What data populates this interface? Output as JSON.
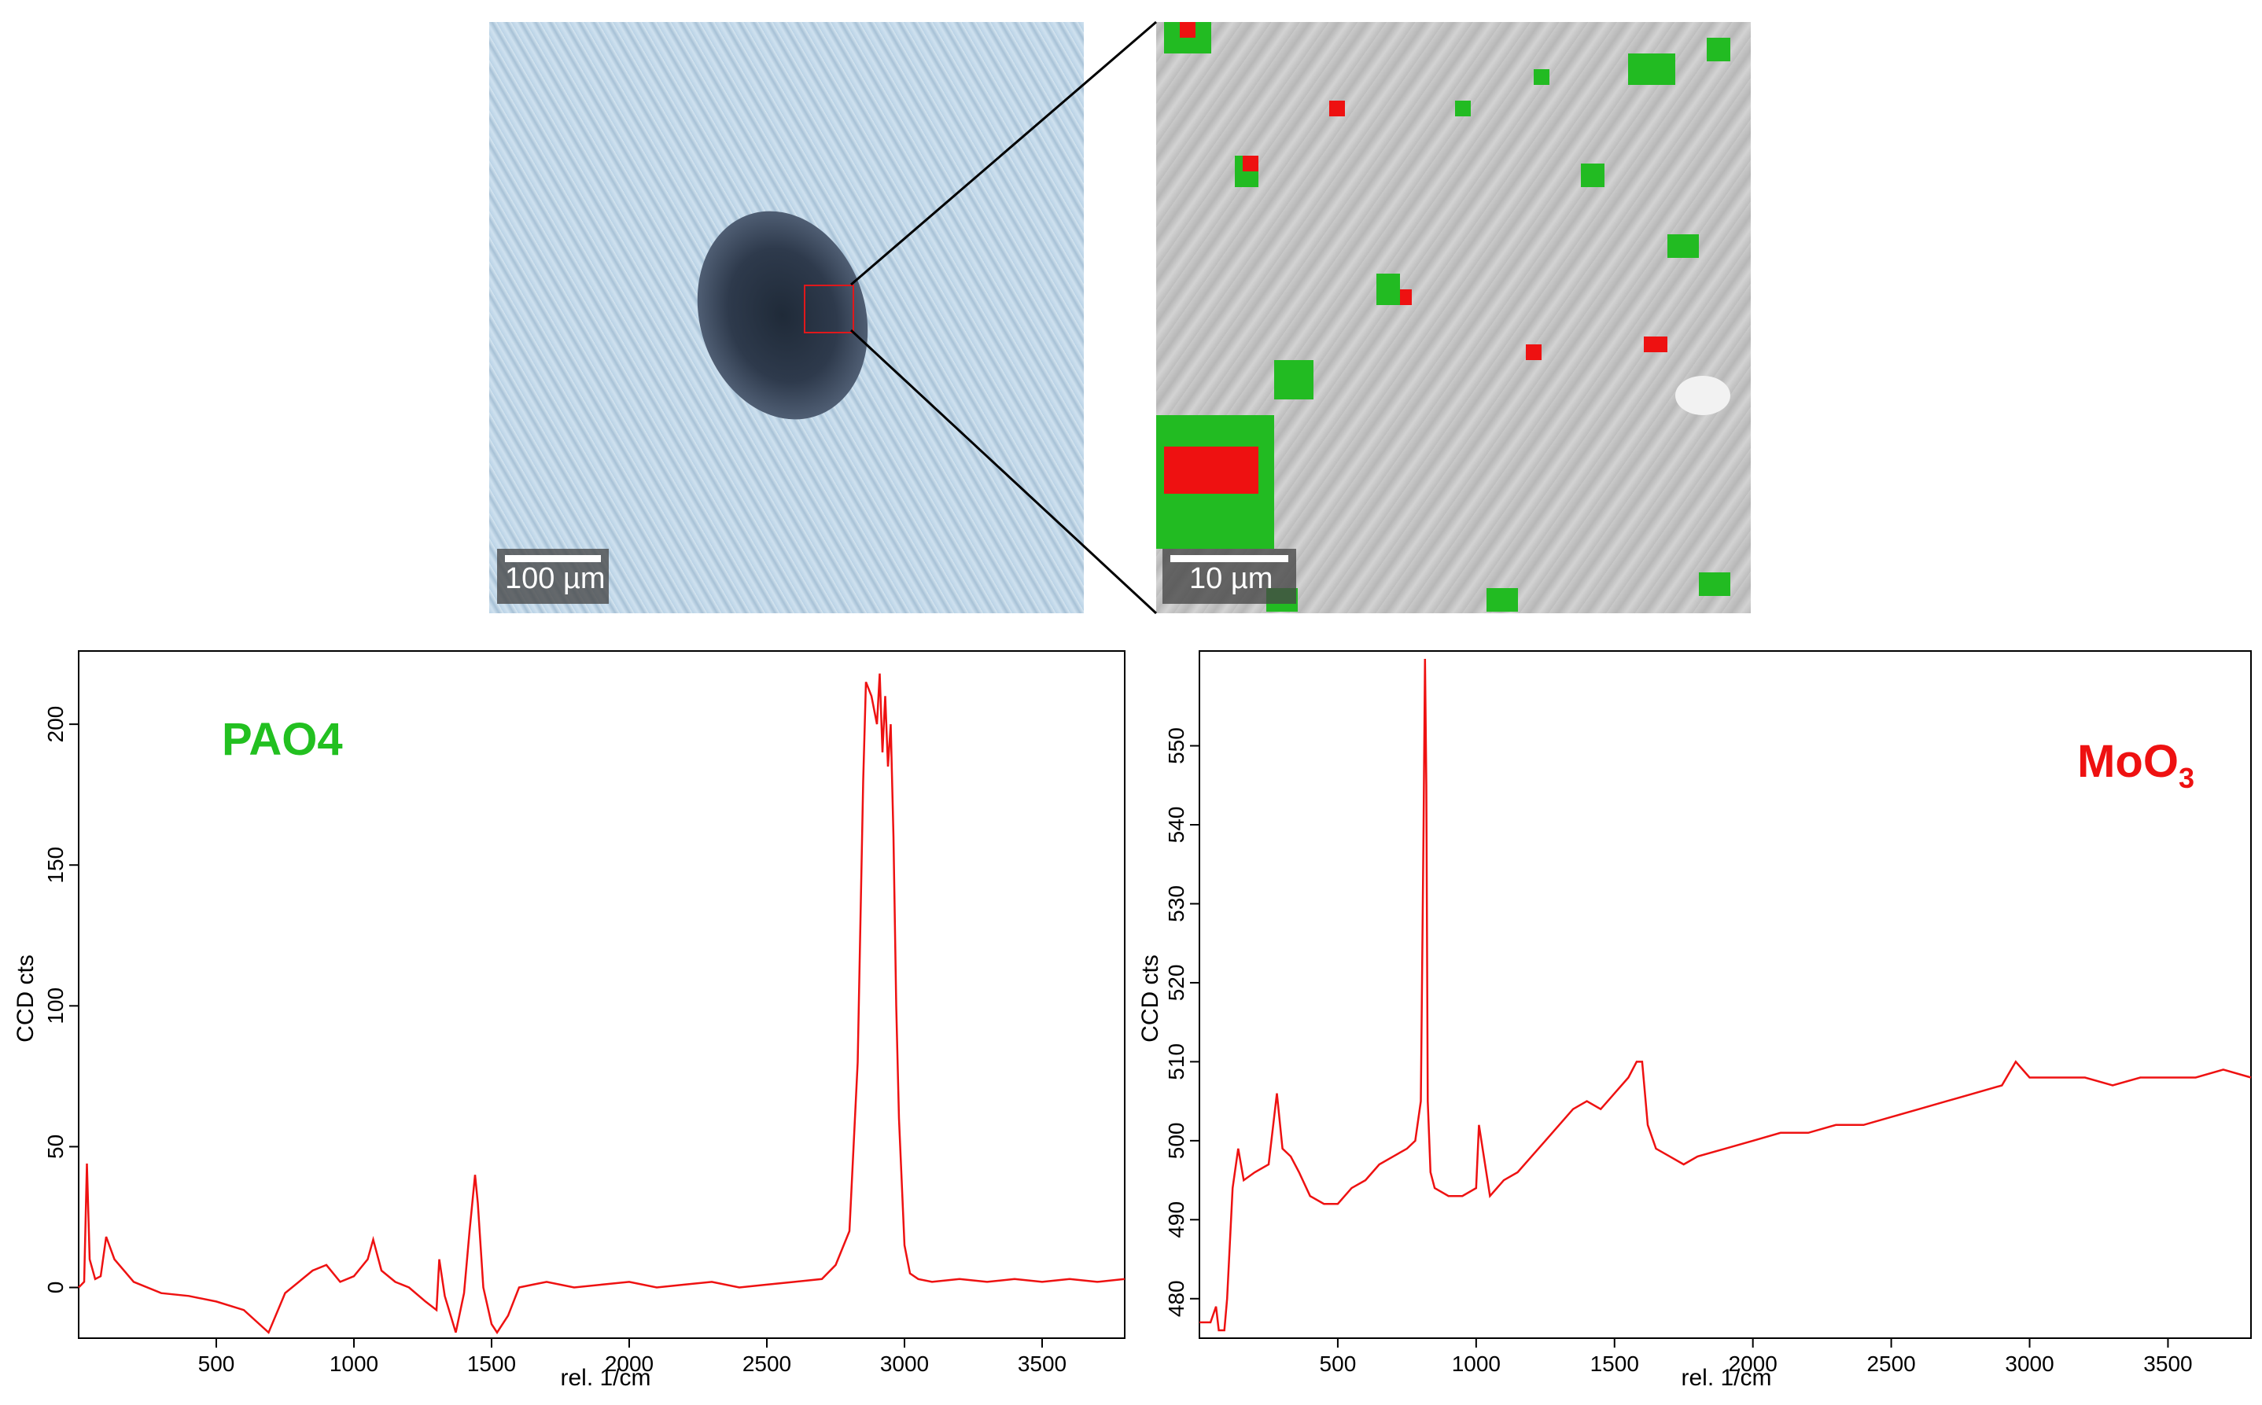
{
  "images": [
    {
      "name": "optical-micrograph",
      "scale_label": "100 µm"
    },
    {
      "name": "raman-map",
      "scale_label": "10 µm"
    }
  ],
  "chart_data": [
    {
      "type": "line",
      "annotation": "PAO4",
      "annotation_color": "#22c020",
      "series_color": "#ee1111",
      "xlabel": "rel. 1/cm",
      "ylabel": "CCD cts",
      "xlim": [
        0,
        3800
      ],
      "ylim": [
        -18,
        226
      ],
      "xticks": [
        500,
        1000,
        1500,
        2000,
        2500,
        3000,
        3500
      ],
      "yticks": [
        0,
        50,
        100,
        150,
        200
      ],
      "x": [
        0,
        20,
        30,
        40,
        60,
        80,
        100,
        130,
        200,
        300,
        400,
        500,
        600,
        690,
        750,
        850,
        900,
        950,
        1000,
        1050,
        1070,
        1100,
        1150,
        1200,
        1260,
        1300,
        1310,
        1330,
        1370,
        1400,
        1420,
        1440,
        1450,
        1470,
        1500,
        1520,
        1560,
        1600,
        1650,
        1700,
        1800,
        1900,
        2000,
        2100,
        2200,
        2300,
        2400,
        2500,
        2600,
        2700,
        2750,
        2800,
        2830,
        2850,
        2860,
        2880,
        2900,
        2910,
        2920,
        2930,
        2940,
        2950,
        2960,
        2970,
        2980,
        3000,
        3020,
        3050,
        3100,
        3200,
        3300,
        3400,
        3500,
        3600,
        3700,
        3800
      ],
      "y": [
        0,
        2,
        44,
        10,
        3,
        4,
        18,
        10,
        2,
        -2,
        -3,
        -5,
        -8,
        -16,
        -2,
        6,
        8,
        2,
        4,
        10,
        17,
        6,
        2,
        0,
        -5,
        -8,
        10,
        -3,
        -16,
        -2,
        20,
        40,
        30,
        0,
        -13,
        -16,
        -10,
        0,
        1,
        2,
        0,
        1,
        2,
        0,
        1,
        2,
        0,
        1,
        2,
        3,
        8,
        20,
        80,
        180,
        215,
        210,
        200,
        218,
        190,
        210,
        185,
        200,
        160,
        100,
        60,
        15,
        5,
        3,
        2,
        3,
        2,
        3,
        2,
        3,
        2,
        3
      ]
    },
    {
      "type": "line",
      "annotation_base": "MoO",
      "annotation_subscript": "3",
      "annotation_color": "#ee1111",
      "series_color": "#ee1111",
      "xlabel": "rel. 1/cm",
      "ylabel": "CCD cts",
      "xlim": [
        0,
        3800
      ],
      "ylim": [
        475,
        562
      ],
      "xticks": [
        500,
        1000,
        1500,
        2000,
        2500,
        3000,
        3500
      ],
      "yticks": [
        480,
        490,
        500,
        510,
        520,
        530,
        540,
        550
      ],
      "x": [
        0,
        40,
        60,
        70,
        90,
        100,
        120,
        140,
        160,
        200,
        250,
        280,
        300,
        330,
        360,
        400,
        450,
        500,
        550,
        600,
        650,
        700,
        750,
        780,
        800,
        810,
        815,
        820,
        825,
        835,
        850,
        900,
        950,
        1000,
        1010,
        1050,
        1100,
        1150,
        1200,
        1250,
        1300,
        1350,
        1400,
        1450,
        1500,
        1550,
        1580,
        1600,
        1620,
        1650,
        1700,
        1750,
        1800,
        1900,
        2000,
        2100,
        2200,
        2300,
        2400,
        2500,
        2600,
        2700,
        2800,
        2900,
        2950,
        3000,
        3100,
        3200,
        3300,
        3400,
        3500,
        3600,
        3700,
        3800
      ],
      "y": [
        477,
        477,
        479,
        476,
        476,
        480,
        494,
        499,
        495,
        496,
        497,
        506,
        499,
        498,
        496,
        493,
        492,
        492,
        494,
        495,
        497,
        498,
        499,
        500,
        505,
        540,
        561,
        545,
        505,
        496,
        494,
        493,
        493,
        494,
        502,
        493,
        495,
        496,
        498,
        500,
        502,
        504,
        505,
        504,
        506,
        508,
        510,
        510,
        502,
        499,
        498,
        497,
        498,
        499,
        500,
        501,
        501,
        502,
        502,
        503,
        504,
        505,
        506,
        507,
        510,
        508,
        508,
        508,
        507,
        508,
        508,
        508,
        509,
        508
      ]
    }
  ]
}
